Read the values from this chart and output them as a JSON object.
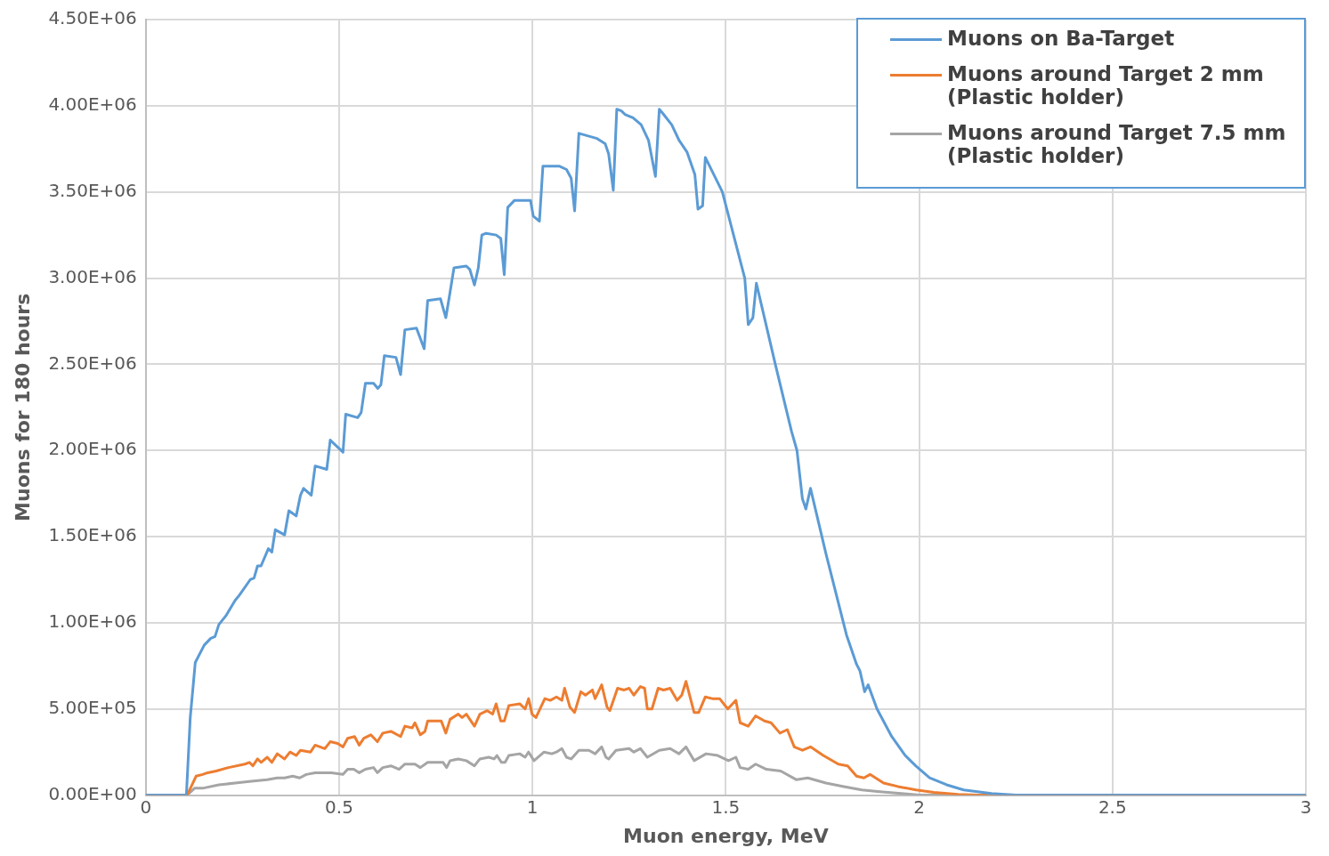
{
  "chart_data": {
    "type": "line",
    "xlabel": "Muon energy, MeV",
    "ylabel": "Muons for 180 hours",
    "xlim": [
      0,
      3
    ],
    "xticks": [
      0,
      0.5,
      1,
      1.5,
      2,
      2.5,
      3
    ],
    "ylim": [
      0,
      4500000
    ],
    "yticks": [
      {
        "value": 0,
        "label": "0.00E+00"
      },
      {
        "value": 500000,
        "label": "5.00E+05"
      },
      {
        "value": 1000000,
        "label": "1.00E+06"
      },
      {
        "value": 1500000,
        "label": "1.50E+06"
      },
      {
        "value": 2000000,
        "label": "2.00E+06"
      },
      {
        "value": 2500000,
        "label": "2.50E+06"
      },
      {
        "value": 3000000,
        "label": "3.00E+06"
      },
      {
        "value": 3500000,
        "label": "3.50E+06"
      },
      {
        "value": 4000000,
        "label": "4.00E+06"
      },
      {
        "value": 4500000,
        "label": "4.50E+06"
      }
    ],
    "grid": true,
    "legend": "top right",
    "marker": "none",
    "line_style": "solid",
    "series": [
      {
        "name": "Muons on Ba-Target",
        "color": "#5b9bd5",
        "x": [
          0,
          0.105,
          0.115,
          0.128,
          0.151,
          0.168,
          0.179,
          0.189,
          0.207,
          0.231,
          0.242,
          0.27,
          0.28,
          0.289,
          0.298,
          0.317,
          0.326,
          0.335,
          0.359,
          0.37,
          0.389,
          0.4,
          0.408,
          0.428,
          0.438,
          0.468,
          0.477,
          0.51,
          0.517,
          0.548,
          0.557,
          0.568,
          0.589,
          0.6,
          0.608,
          0.617,
          0.647,
          0.659,
          0.67,
          0.7,
          0.72,
          0.729,
          0.762,
          0.776,
          0.787,
          0.797,
          0.829,
          0.838,
          0.85,
          0.86,
          0.869,
          0.88,
          0.906,
          0.918,
          0.927,
          0.936,
          0.953,
          0.995,
          1.002,
          1.018,
          1.027,
          1.069,
          1.088,
          1.1,
          1.109,
          1.12,
          1.167,
          1.188,
          1.197,
          1.209,
          1.218,
          1.23,
          1.239,
          1.26,
          1.281,
          1.3,
          1.318,
          1.328,
          1.339,
          1.36,
          1.379,
          1.4,
          1.42,
          1.428,
          1.44,
          1.447,
          1.491,
          1.549,
          1.558,
          1.57,
          1.579,
          1.628,
          1.67,
          1.684,
          1.698,
          1.707,
          1.719,
          1.759,
          1.812,
          1.838,
          1.847,
          1.859,
          1.868,
          1.891,
          1.929,
          1.964,
          1.991,
          2.027,
          2.071,
          2.115,
          2.187,
          2.25,
          3
        ],
        "values": [
          0,
          0,
          450000,
          770000,
          870000,
          910000,
          920000,
          990000,
          1040000,
          1130000,
          1160000,
          1250000,
          1260000,
          1330000,
          1330000,
          1430000,
          1410000,
          1540000,
          1510000,
          1650000,
          1620000,
          1740000,
          1780000,
          1740000,
          1910000,
          1890000,
          2060000,
          1990000,
          2210000,
          2190000,
          2220000,
          2390000,
          2390000,
          2360000,
          2380000,
          2550000,
          2540000,
          2440000,
          2700000,
          2710000,
          2590000,
          2870000,
          2880000,
          2770000,
          2920000,
          3060000,
          3070000,
          3050000,
          2960000,
          3060000,
          3250000,
          3260000,
          3250000,
          3230000,
          3020000,
          3410000,
          3450000,
          3450000,
          3360000,
          3330000,
          3650000,
          3650000,
          3630000,
          3580000,
          3390000,
          3840000,
          3810000,
          3780000,
          3720000,
          3510000,
          3980000,
          3970000,
          3950000,
          3930000,
          3890000,
          3800000,
          3590000,
          3980000,
          3950000,
          3890000,
          3800000,
          3730000,
          3600000,
          3400000,
          3420000,
          3700000,
          3500000,
          3000000,
          2730000,
          2770000,
          2970000,
          2500000,
          2110000,
          2000000,
          1720000,
          1660000,
          1780000,
          1400000,
          930000,
          760000,
          720000,
          600000,
          640000,
          500000,
          340000,
          230000,
          170000,
          100000,
          60000,
          30000,
          10000,
          0,
          0
        ]
      },
      {
        "name": "Muons around Target 2 mm (Plastic holder)",
        "color": "#ed7d31",
        "x": [
          0,
          0.107,
          0.13,
          0.147,
          0.16,
          0.182,
          0.214,
          0.256,
          0.268,
          0.277,
          0.289,
          0.298,
          0.314,
          0.326,
          0.34,
          0.359,
          0.373,
          0.389,
          0.4,
          0.426,
          0.438,
          0.463,
          0.477,
          0.496,
          0.51,
          0.522,
          0.54,
          0.552,
          0.564,
          0.582,
          0.599,
          0.613,
          0.634,
          0.659,
          0.67,
          0.689,
          0.696,
          0.71,
          0.722,
          0.729,
          0.764,
          0.776,
          0.787,
          0.808,
          0.818,
          0.829,
          0.85,
          0.864,
          0.883,
          0.897,
          0.906,
          0.918,
          0.927,
          0.939,
          0.967,
          0.981,
          0.99,
          0.999,
          1.009,
          1.032,
          1.046,
          1.062,
          1.076,
          1.083,
          1.097,
          1.109,
          1.125,
          1.137,
          1.155,
          1.162,
          1.179,
          1.193,
          1.2,
          1.22,
          1.237,
          1.25,
          1.262,
          1.279,
          1.29,
          1.297,
          1.309,
          1.325,
          1.339,
          1.356,
          1.374,
          1.386,
          1.397,
          1.418,
          1.43,
          1.447,
          1.465,
          1.484,
          1.505,
          1.526,
          1.537,
          1.558,
          1.577,
          1.6,
          1.617,
          1.64,
          1.659,
          1.677,
          1.698,
          1.719,
          1.752,
          1.791,
          1.815,
          1.838,
          1.857,
          1.873,
          1.908,
          1.945,
          1.992,
          2.038,
          2.1,
          2.15,
          3
        ],
        "values": [
          0,
          0,
          110000,
          120000,
          130000,
          140000,
          160000,
          180000,
          190000,
          170000,
          210000,
          190000,
          220000,
          190000,
          240000,
          210000,
          250000,
          230000,
          260000,
          250000,
          290000,
          270000,
          310000,
          300000,
          280000,
          330000,
          340000,
          290000,
          330000,
          350000,
          310000,
          360000,
          370000,
          340000,
          400000,
          390000,
          420000,
          350000,
          370000,
          430000,
          430000,
          360000,
          440000,
          470000,
          450000,
          470000,
          400000,
          470000,
          490000,
          470000,
          530000,
          430000,
          430000,
          520000,
          530000,
          500000,
          560000,
          470000,
          450000,
          560000,
          550000,
          570000,
          550000,
          620000,
          510000,
          480000,
          600000,
          580000,
          610000,
          560000,
          640000,
          510000,
          490000,
          620000,
          610000,
          620000,
          580000,
          630000,
          620000,
          500000,
          500000,
          620000,
          610000,
          620000,
          550000,
          580000,
          660000,
          480000,
          480000,
          570000,
          560000,
          560000,
          500000,
          550000,
          420000,
          400000,
          460000,
          430000,
          420000,
          360000,
          380000,
          280000,
          260000,
          280000,
          230000,
          180000,
          170000,
          110000,
          100000,
          120000,
          70000,
          50000,
          30000,
          16000,
          5000,
          0,
          0
        ]
      },
      {
        "name": "Muons around Target 7.5 mm (Plastic holder)",
        "color": "#a5a5a5",
        "x": [
          0,
          0.107,
          0.126,
          0.147,
          0.189,
          0.231,
          0.273,
          0.314,
          0.34,
          0.359,
          0.38,
          0.398,
          0.415,
          0.438,
          0.48,
          0.51,
          0.522,
          0.538,
          0.552,
          0.568,
          0.589,
          0.599,
          0.613,
          0.634,
          0.655,
          0.67,
          0.696,
          0.71,
          0.729,
          0.769,
          0.778,
          0.787,
          0.808,
          0.829,
          0.85,
          0.864,
          0.887,
          0.901,
          0.908,
          0.92,
          0.929,
          0.939,
          0.967,
          0.981,
          0.99,
          1.004,
          1.03,
          1.05,
          1.062,
          1.076,
          1.088,
          1.1,
          1.12,
          1.146,
          1.162,
          1.179,
          1.19,
          1.197,
          1.216,
          1.25,
          1.262,
          1.279,
          1.297,
          1.328,
          1.356,
          1.379,
          1.397,
          1.418,
          1.449,
          1.479,
          1.507,
          1.526,
          1.537,
          1.558,
          1.577,
          1.605,
          1.642,
          1.682,
          1.712,
          1.759,
          1.805,
          1.852,
          1.898,
          1.954,
          2.0,
          3
        ],
        "values": [
          0,
          0,
          40000,
          40000,
          60000,
          70000,
          80000,
          90000,
          100000,
          100000,
          110000,
          100000,
          120000,
          130000,
          130000,
          120000,
          150000,
          150000,
          130000,
          150000,
          160000,
          130000,
          160000,
          170000,
          150000,
          180000,
          180000,
          160000,
          190000,
          190000,
          160000,
          200000,
          210000,
          200000,
          170000,
          210000,
          220000,
          210000,
          230000,
          190000,
          190000,
          230000,
          240000,
          220000,
          250000,
          200000,
          250000,
          240000,
          250000,
          270000,
          220000,
          210000,
          260000,
          260000,
          240000,
          280000,
          220000,
          210000,
          260000,
          270000,
          250000,
          270000,
          220000,
          260000,
          270000,
          240000,
          280000,
          200000,
          240000,
          230000,
          200000,
          220000,
          160000,
          150000,
          180000,
          150000,
          140000,
          90000,
          100000,
          70000,
          50000,
          30000,
          20000,
          10000,
          0,
          0
        ]
      }
    ]
  }
}
